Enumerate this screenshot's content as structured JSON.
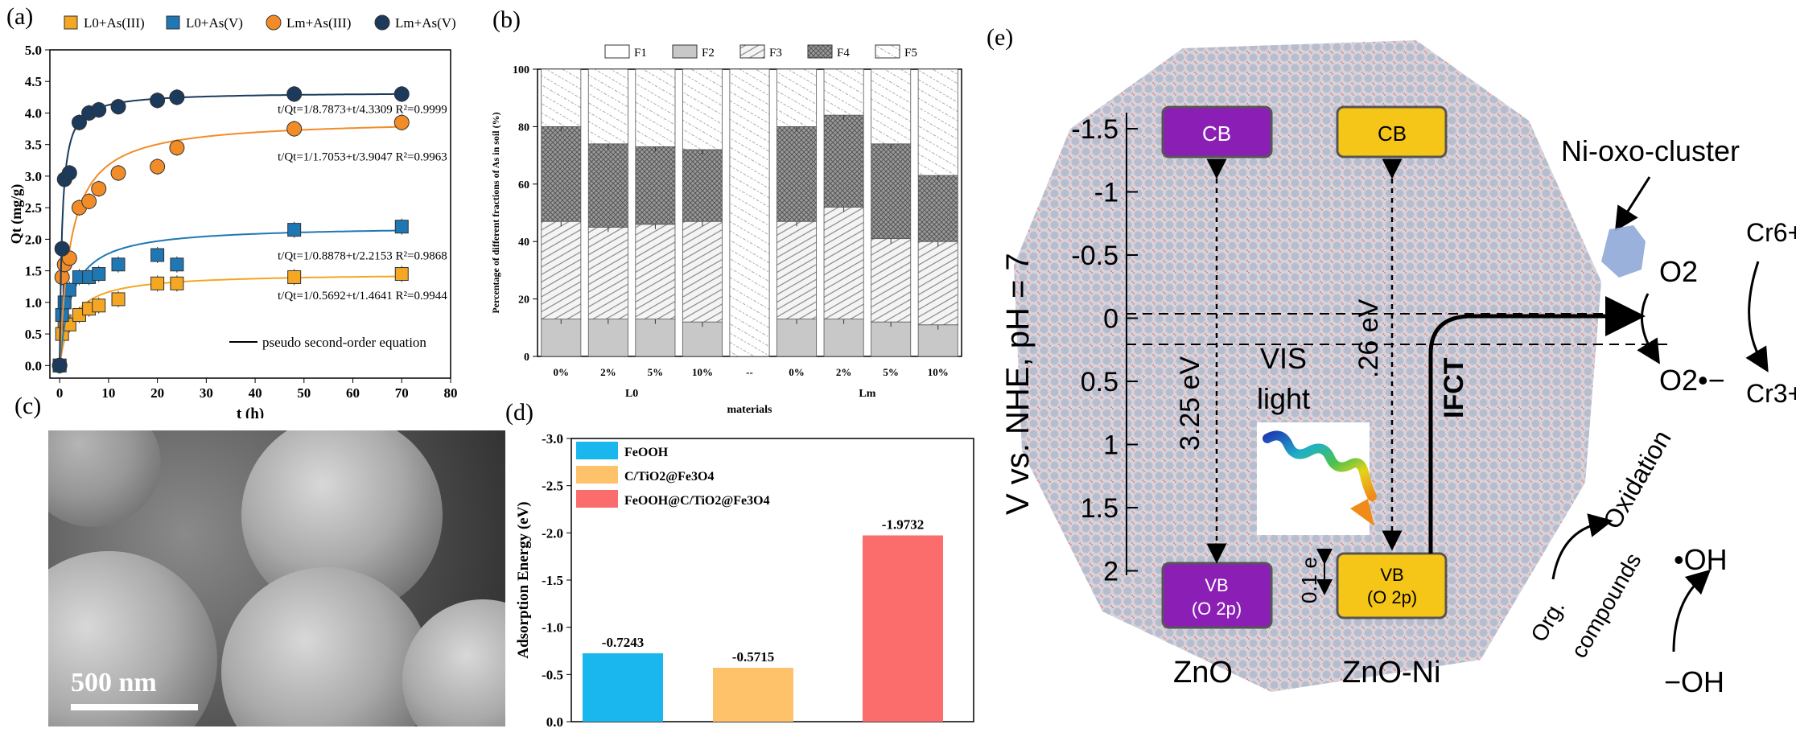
{
  "panels": {
    "a": "(a)",
    "b": "(b)",
    "c": "(c)",
    "d": "(d)",
    "e": "(e)"
  },
  "chart_data": [
    {
      "id": "a",
      "type": "scatter",
      "xlabel": "t (h)",
      "ylabel": "Qt (mg/g)",
      "xlim": [
        -2,
        80
      ],
      "ylim": [
        -0.2,
        5.0
      ],
      "xticks": [
        "0",
        "10",
        "20",
        "30",
        "40",
        "50",
        "60",
        "70",
        "80"
      ],
      "yticks": [
        "0.0",
        "0.5",
        "1.0",
        "1.5",
        "2.0",
        "2.5",
        "3.0",
        "3.5",
        "4.0",
        "4.5",
        "5.0"
      ],
      "legend": [
        "L0+As(III)",
        "L0+As(V)",
        "Lm+As(III)",
        "Lm+As(V)"
      ],
      "fit_label": "pseudo second-order equation",
      "equations": [
        "t/Qt=1/8.7873+t/4.3309  R²=0.9999",
        "t/Qt=1/1.7053+t/3.9047  R²=0.9963",
        "t/Qt=1/0.8878+t/2.2153  R²=0.9868",
        "t/Qt=1/0.5692+t/1.4641  R²=0.9944"
      ],
      "series": [
        {
          "name": "L0+As(III)",
          "color": "#F5A623",
          "marker": "square",
          "x": [
            0,
            0.5,
            1,
            2,
            4,
            6,
            8,
            12,
            20,
            24,
            48,
            70
          ],
          "y": [
            0.0,
            0.5,
            0.7,
            0.65,
            0.8,
            0.9,
            0.95,
            1.05,
            1.3,
            1.3,
            1.4,
            1.45
          ],
          "fit": {
            "qe": 1.4641,
            "k": 0.5692
          }
        },
        {
          "name": "L0+As(V)",
          "color": "#1F77B4",
          "marker": "square",
          "x": [
            0,
            0.5,
            1,
            2,
            4,
            6,
            8,
            12,
            20,
            24,
            48,
            70
          ],
          "y": [
            0.0,
            0.8,
            1.0,
            1.2,
            1.4,
            1.4,
            1.45,
            1.6,
            1.75,
            1.6,
            2.15,
            2.2
          ],
          "fit": {
            "qe": 2.2153,
            "k": 0.8878
          }
        },
        {
          "name": "Lm+As(III)",
          "color": "#F28C28",
          "marker": "circle",
          "x": [
            0,
            0.5,
            1,
            2,
            4,
            6,
            8,
            12,
            20,
            24,
            48,
            70
          ],
          "y": [
            0.0,
            1.4,
            1.6,
            1.7,
            2.5,
            2.6,
            2.8,
            3.05,
            3.15,
            3.45,
            3.75,
            3.85
          ],
          "fit": {
            "qe": 3.9047,
            "k": 1.7053
          }
        },
        {
          "name": "Lm+As(V)",
          "color": "#1B3A5C",
          "marker": "circle",
          "x": [
            0,
            0.5,
            1,
            2,
            4,
            6,
            8,
            12,
            20,
            24,
            48,
            70
          ],
          "y": [
            0.0,
            1.85,
            2.95,
            3.05,
            3.85,
            4.0,
            4.05,
            4.1,
            4.2,
            4.25,
            4.3,
            4.3
          ],
          "fit": {
            "qe": 4.3309,
            "k": 8.7873
          }
        }
      ]
    },
    {
      "id": "b",
      "type": "bar",
      "stacked": true,
      "ylabel": "Percentage of different fractions of As in soil (%)",
      "xlabel": "materials",
      "ylim": [
        0,
        100
      ],
      "yticks": [
        "0",
        "20",
        "40",
        "60",
        "80",
        "100"
      ],
      "legend": [
        "F1",
        "F2",
        "F3",
        "F4",
        "F5"
      ],
      "categories": [
        "0%",
        "2%",
        "5%",
        "10%",
        "--",
        "0%",
        "2%",
        "5%",
        "10%"
      ],
      "group_labels": [
        "L0",
        "Lm"
      ],
      "series": [
        {
          "name": "F1",
          "values": [
            0,
            0,
            0,
            0,
            0,
            0,
            0,
            0,
            0
          ]
        },
        {
          "name": "F2",
          "values": [
            13,
            13,
            13,
            12,
            0,
            13,
            13,
            12,
            11
          ]
        },
        {
          "name": "F3",
          "values": [
            34,
            32,
            33,
            35,
            0,
            34,
            39,
            29,
            29
          ]
        },
        {
          "name": "F4",
          "values": [
            33,
            29,
            27,
            25,
            0,
            33,
            32,
            33,
            23
          ]
        },
        {
          "name": "F5",
          "values": [
            20,
            26,
            27,
            28,
            100,
            20,
            16,
            26,
            37
          ]
        }
      ]
    },
    {
      "id": "d",
      "type": "bar",
      "ylabel": "Adsorption Energy (eV)",
      "ylim": [
        0,
        -3.0
      ],
      "yticks": [
        "0.0",
        "-0.5",
        "-1.0",
        "-1.5",
        "-2.0",
        "-2.5",
        "-3.0"
      ],
      "legend": [
        "FeOOH",
        "C/TiO2@Fe3O4",
        "FeOOH@C/TiO2@Fe3O4"
      ],
      "categories": [
        "FeOOH",
        "C/TiO2@Fe3O4",
        "FeOOH@C/TiO2@Fe3O4"
      ],
      "values": [
        -0.7243,
        -0.5715,
        -1.9732
      ],
      "labels": [
        "-0.7243",
        "-0.5715",
        "-1.9732"
      ],
      "colors": [
        "#1AB6EE",
        "#FDC26A",
        "#FB6C6C"
      ]
    }
  ],
  "panel_c": {
    "scale_label": "500 nm"
  },
  "panel_e": {
    "yaxis_label": "V vs. NHE, pH = 7",
    "yticks": [
      "-1.5",
      "-1",
      "-0.5",
      "0",
      "0.5",
      "1",
      "1.5",
      "2"
    ],
    "cb1": "CB",
    "cb2": "CB",
    "vb1_line1": "VB",
    "vb1_line2": "(O 2p)",
    "vb2_line1": "VB",
    "vb2_line2": "(O 2p)",
    "gap1": "3.25 eV",
    "gap2": ".26 eV",
    "gap3": "0.1 e",
    "vis_line1": "VIS",
    "vis_line2": "light",
    "ifct": "IFCT",
    "cluster": "Ni-oxo-cluster",
    "o2": "O2",
    "o2radical": "O2•−",
    "cr6": "Cr6+",
    "cr3": "Cr3+",
    "org1": "Org.",
    "org2": "compounds",
    "oxidation": "Oxidation",
    "oh_radical": "•OH",
    "oh": "−OH",
    "zno": "ZnO",
    "znoni": "ZnO-Ni",
    "colors": {
      "purple": "#8B1FB5",
      "gold": "#F5C518",
      "sphere": "#C9C9D6",
      "dot": "#F08080"
    }
  }
}
